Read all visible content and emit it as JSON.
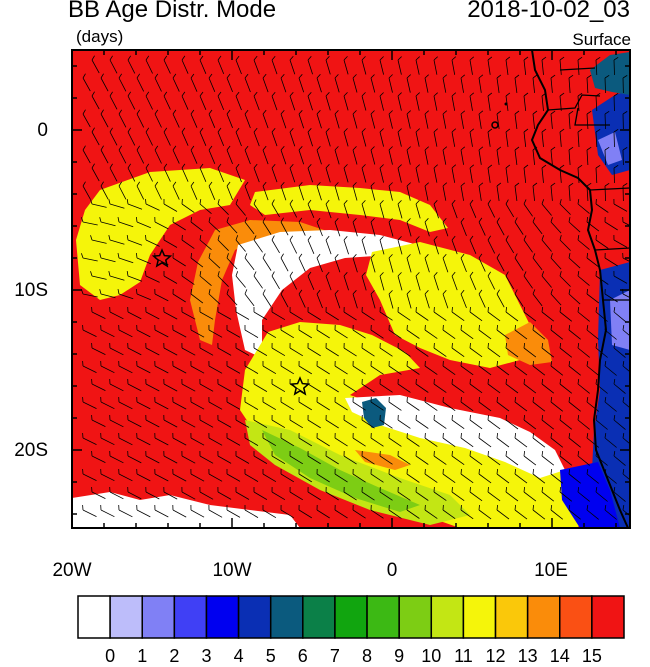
{
  "header": {
    "title": "BB Age Distr. Mode",
    "datetime": "2018-10-02_03",
    "units": "(days)",
    "level": "Surface"
  },
  "map": {
    "lat_ticks": [
      "0",
      "10S",
      "20S"
    ],
    "lon_ticks": [
      "20W",
      "10W",
      "0",
      "10E"
    ],
    "markers": [
      {
        "name": "star-marker-north",
        "symbol": "star"
      },
      {
        "name": "star-marker-south",
        "symbol": "star"
      }
    ],
    "overlay": "wind barbs"
  },
  "colorbar": {
    "labels": [
      "0",
      "1",
      "2",
      "3",
      "4",
      "5",
      "6",
      "7",
      "8",
      "9",
      "10",
      "11",
      "12",
      "13",
      "14",
      "15"
    ],
    "colors": [
      "#ffffff",
      "#bdbdfa",
      "#8080f5",
      "#4040f5",
      "#0000f0",
      "#0a2fb4",
      "#0b5a7e",
      "#0b8048",
      "#11a50f",
      "#3cb914",
      "#7dcd14",
      "#c3e614",
      "#f5f50a",
      "#fac80a",
      "#fa8c0a",
      "#fa5014",
      "#f01414"
    ]
  },
  "colors": {
    "ocean_background": "#f01414",
    "land_outline": "#000000"
  }
}
